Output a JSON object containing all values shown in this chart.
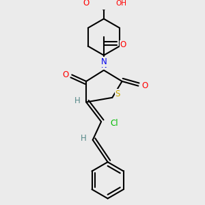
{
  "bg_color": "#ebebeb",
  "atom_colors": {
    "C": "#000000",
    "N": "#0000ee",
    "O": "#ff0000",
    "S": "#ccaa00",
    "Cl": "#00bb00",
    "H": "#558888"
  },
  "bond_color": "#000000",
  "bond_width": 1.5,
  "font_size_atoms": 8.5,
  "fig_size": [
    3.0,
    3.0
  ],
  "dpi": 100
}
